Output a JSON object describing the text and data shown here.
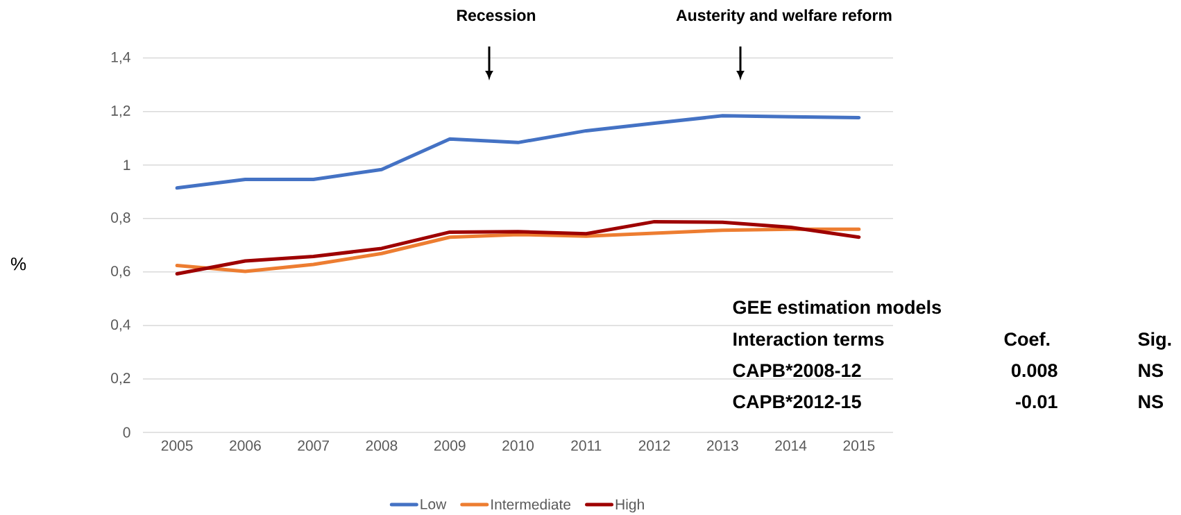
{
  "chart_data": {
    "type": "line",
    "ylabel": "%",
    "x": [
      2005,
      2006,
      2007,
      2008,
      2009,
      2010,
      2011,
      2012,
      2013,
      2014,
      2015
    ],
    "xlim": [
      2004.5,
      2015.5
    ],
    "xticks": [
      2005,
      2006,
      2007,
      2008,
      2009,
      2010,
      2011,
      2012,
      2013,
      2014,
      2015
    ],
    "ylim": [
      0,
      1.4
    ],
    "yticks": [
      0,
      {
        "value": 0.2,
        "label": "0,2"
      },
      {
        "value": 0.4,
        "label": "0,4"
      },
      {
        "value": 0.6,
        "label": "0,6"
      },
      {
        "value": 0.8,
        "label": "0,8"
      },
      1,
      {
        "value": 1.2,
        "label": "1,2"
      },
      {
        "value": 1.4,
        "label": "1,4"
      }
    ],
    "grid": "y",
    "legend": "bottom",
    "marker": "none",
    "line_style": "solid",
    "series": [
      {
        "name": "Low",
        "color": "#4472c4",
        "values": [
          0.914,
          0.946,
          0.946,
          0.983,
          1.097,
          1.084,
          1.128,
          1.156,
          1.184,
          1.18,
          1.177
        ]
      },
      {
        "name": "Intermediate",
        "color": "#ed7d31",
        "values": [
          0.624,
          0.602,
          0.628,
          0.669,
          0.73,
          0.74,
          0.734,
          0.745,
          0.756,
          0.76,
          0.76
        ]
      },
      {
        "name": "High",
        "color": "#9e0000",
        "values": [
          0.593,
          0.641,
          0.658,
          0.688,
          0.749,
          0.751,
          0.743,
          0.788,
          0.786,
          0.767,
          0.73
        ]
      }
    ],
    "annotations": [
      "Recession",
      "Austerity and welfare reform",
      "GEE estimation models",
      "Interaction terms",
      "Coef.",
      "Sig.",
      "CAPB*2008-12",
      "0.008",
      "NS",
      "CAPB*2012-15",
      "-0.01",
      "NS"
    ]
  }
}
